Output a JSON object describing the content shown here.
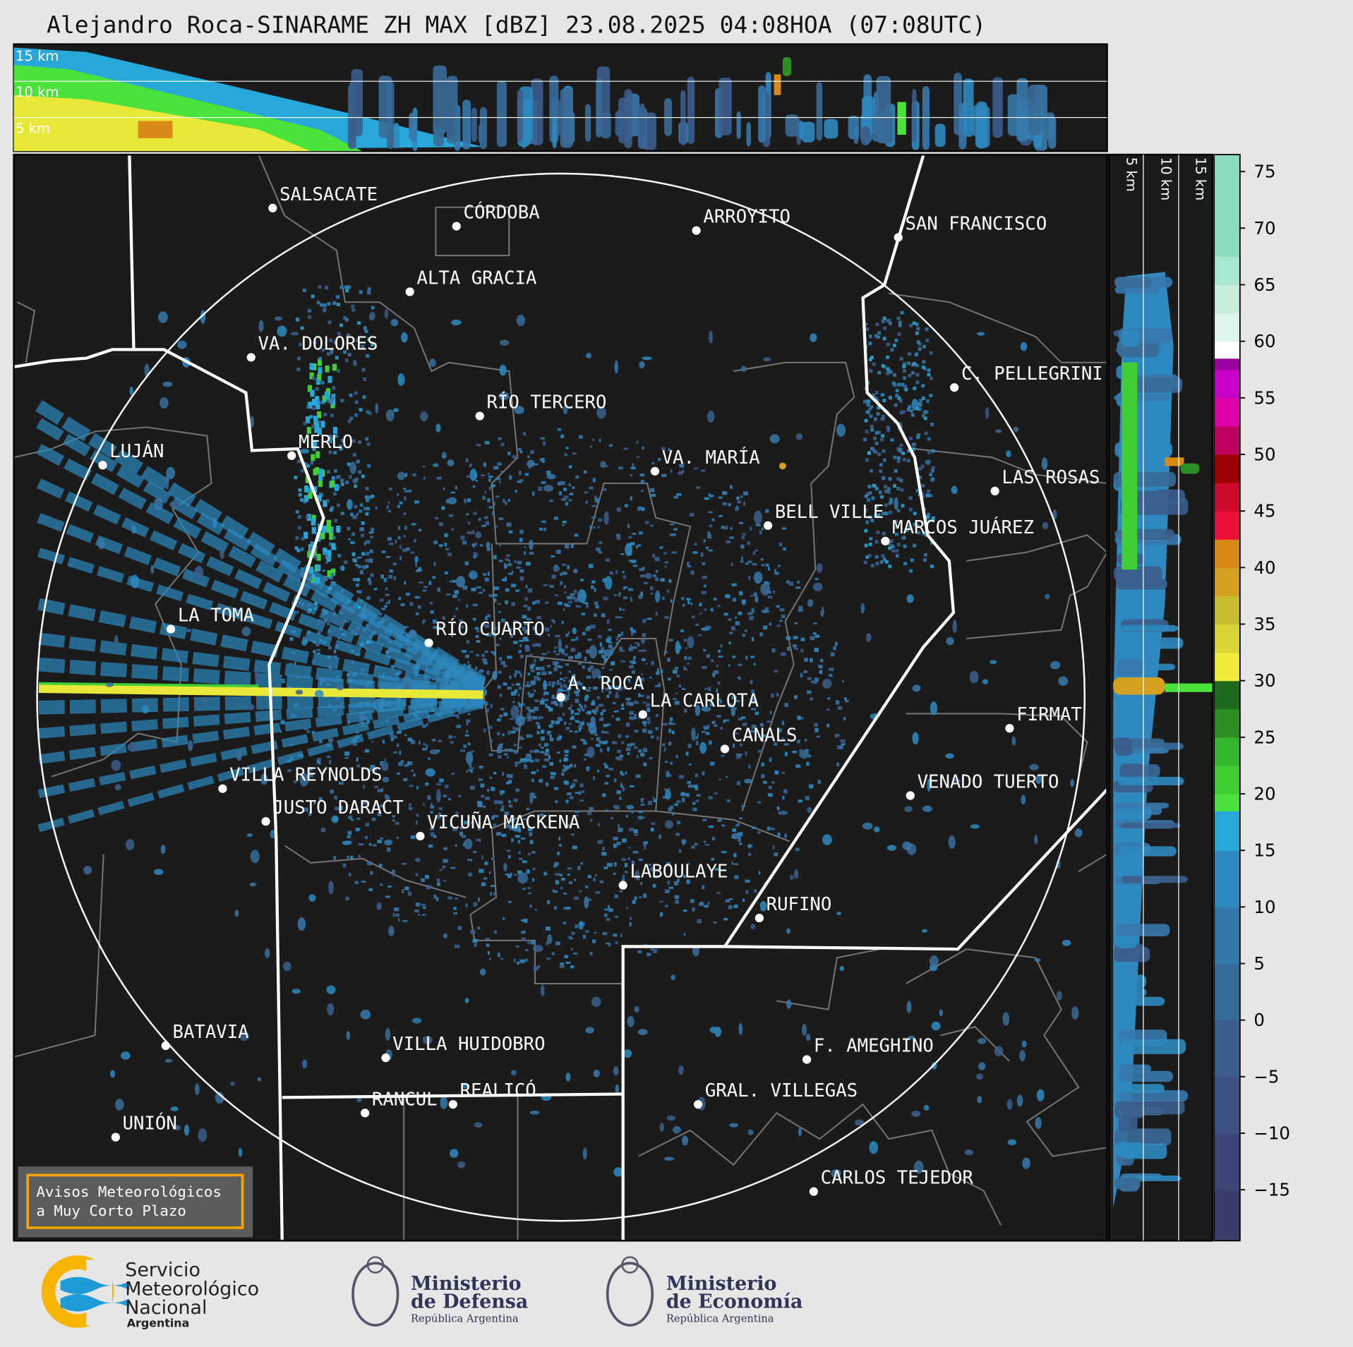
{
  "title": "Alejandro Roca-SINARAME ZH MAX [dBZ] 23.08.2025 04:08HOA (07:08UTC)",
  "top_panel": {
    "height_labels": [
      "15 km",
      "10 km",
      "5 km"
    ]
  },
  "side_panel": {
    "height_labels": [
      "5 km",
      "10 km",
      "15 km"
    ]
  },
  "cities": [
    "SALSACATE",
    "CÓRDOBA",
    "ARROYITO",
    "SAN FRANCISCO",
    "ALTA GRACIA",
    "VA. DOLORES",
    "C. PELLEGRINI",
    "RÍO TERCERO",
    "LUJÁN",
    "MERLO",
    "VA. MARÍA",
    "LAS ROSAS",
    "BELL VILLE",
    "MARCOS JUÁREZ",
    "LA TOMA",
    "RÍO CUARTO",
    "A. ROCA",
    "LA CARLOTA",
    "CANALS",
    "FIRMAT",
    "VILLA REYNOLDS",
    "VENADO TUERTO",
    "JUSTO DARACT",
    "VICUÑA MACKENA",
    "LABOULAYE",
    "RUFINO",
    "BATAVIA",
    "VILLA HUIDOBRO",
    "F. AMEGHINO",
    "RANCUL",
    "REALICÓ",
    "GRAL. VILLEGAS",
    "UNIÓN",
    "CARLOS TEJEDOR"
  ],
  "colorbar": {
    "unit": "dBZ",
    "range": [
      -19.5,
      76.5
    ],
    "ticks": [
      "75",
      "70",
      "65",
      "60",
      "55",
      "50",
      "45",
      "40",
      "35",
      "30",
      "25",
      "20",
      "15",
      "10",
      "5",
      "0",
      "−5",
      "−10",
      "−15"
    ],
    "segments": [
      [
        -19.5,
        -15,
        "#3a3d6a"
      ],
      [
        -15,
        -10,
        "#3d4777"
      ],
      [
        -10,
        -5,
        "#3e5282"
      ],
      [
        -5,
        0,
        "#3c5e8c"
      ],
      [
        0,
        5,
        "#386b99"
      ],
      [
        5,
        10,
        "#3378ab"
      ],
      [
        10,
        15,
        "#2d89bf"
      ],
      [
        15,
        18.5,
        "#28a8d8"
      ],
      [
        18.5,
        20,
        "#4ce23c"
      ],
      [
        20,
        22.5,
        "#3fcf35"
      ],
      [
        22.5,
        25,
        "#36b52e"
      ],
      [
        25,
        27.5,
        "#2b8f26"
      ],
      [
        27.5,
        30,
        "#1f6a1f"
      ],
      [
        30,
        32.5,
        "#eeec38"
      ],
      [
        32.5,
        35,
        "#d9d535"
      ],
      [
        35,
        37.5,
        "#c6bd2e"
      ],
      [
        37.5,
        40,
        "#d4a020"
      ],
      [
        40,
        42.5,
        "#d88a18"
      ],
      [
        42.5,
        45,
        "#ee1038"
      ],
      [
        45,
        47.5,
        "#cc0a2a"
      ],
      [
        47.5,
        50,
        "#9c0000"
      ],
      [
        50,
        52.5,
        "#c0005e"
      ],
      [
        52.5,
        55,
        "#e000a8"
      ],
      [
        55,
        57.5,
        "#c800c8"
      ],
      [
        57.5,
        58.5,
        "#9a00a0"
      ],
      [
        58.5,
        60,
        "#ffffff"
      ],
      [
        60,
        62.5,
        "#dff4ea"
      ],
      [
        62.5,
        65,
        "#c6eedb"
      ],
      [
        65,
        67.5,
        "#a8e6cf"
      ],
      [
        67.5,
        76.5,
        "#8adcbd"
      ]
    ]
  },
  "warning_box": {
    "line1": "Avisos Meteorológicos",
    "line2": "a Muy Corto Plazo",
    "border_color": "#f5a300"
  },
  "logos": {
    "smn": {
      "lines": [
        "Servicio",
        "Meteorológico",
        "Nacional"
      ],
      "sub": "Argentina"
    },
    "defensa": {
      "lines": [
        "Ministerio",
        "de Defensa"
      ],
      "sub": "República Argentina"
    },
    "economia": {
      "lines": [
        "Ministerio",
        "de Economía"
      ],
      "sub": "República Argentina"
    }
  }
}
